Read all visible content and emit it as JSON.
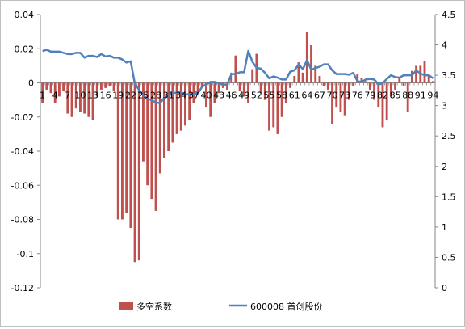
{
  "chart_data": {
    "type": "bar+line",
    "left_axis": {
      "min": -0.12,
      "max": 0.04,
      "ticks": [
        "0.04",
        "0.02",
        "0",
        "-0.02",
        "-0.04",
        "-0.06",
        "-0.08",
        "-0.1",
        "-0.12"
      ]
    },
    "right_axis": {
      "min": 0,
      "max": 4.5,
      "ticks": [
        "4.5",
        "4",
        "3.5",
        "3",
        "2.5",
        "2",
        "1.5",
        "1",
        "0.5",
        "0"
      ]
    },
    "x_tick_labels": [
      "1",
      "4",
      "7",
      "10",
      "13",
      "16",
      "19",
      "22",
      "25",
      "28",
      "31",
      "34",
      "37",
      "40",
      "43",
      "46",
      "49",
      "52",
      "55",
      "58",
      "61",
      "64",
      "67",
      "70",
      "73",
      "76",
      "79",
      "82",
      "85",
      "88",
      "91",
      "94"
    ],
    "x_tick_positions": [
      1,
      4,
      7,
      10,
      13,
      16,
      19,
      22,
      25,
      28,
      31,
      34,
      37,
      40,
      43,
      46,
      49,
      52,
      55,
      58,
      61,
      64,
      67,
      70,
      73,
      76,
      79,
      82,
      85,
      88,
      91,
      94
    ],
    "series": [
      {
        "name": "多空系数",
        "type": "bar",
        "axis": "left",
        "color": "#c0504d",
        "values": [
          -0.012,
          -0.004,
          -0.006,
          -0.012,
          -0.008,
          -0.005,
          -0.018,
          -0.02,
          -0.015,
          -0.017,
          -0.018,
          -0.02,
          -0.022,
          -0.008,
          -0.004,
          -0.003,
          -0.002,
          -0.005,
          -0.08,
          -0.08,
          -0.076,
          -0.085,
          -0.105,
          -0.104,
          -0.046,
          -0.06,
          -0.068,
          -0.075,
          -0.053,
          -0.044,
          -0.04,
          -0.035,
          -0.03,
          -0.028,
          -0.025,
          -0.022,
          -0.012,
          -0.005,
          -0.003,
          -0.014,
          -0.02,
          -0.012,
          -0.006,
          -0.003,
          -0.004,
          0.006,
          0.016,
          -0.005,
          -0.008,
          -0.012,
          0.008,
          0.017,
          -0.006,
          -0.01,
          -0.028,
          -0.026,
          -0.03,
          -0.02,
          -0.012,
          -0.003,
          0.004,
          0.012,
          0.006,
          0.03,
          0.022,
          0.01,
          0.004,
          -0.002,
          -0.004,
          -0.024,
          -0.014,
          -0.017,
          -0.019,
          -0.01,
          -0.002,
          0.005,
          0.003,
          0.001,
          -0.004,
          -0.01,
          -0.014,
          -0.026,
          -0.022,
          -0.008,
          -0.004,
          0.003,
          -0.002,
          -0.017,
          0.007,
          0.01,
          0.01,
          0.013,
          0.004,
          0.001
        ],
        "legend": "多空系数"
      },
      {
        "name": "600008 首创股份",
        "type": "line",
        "axis": "right",
        "color": "#4f81bd",
        "values": [
          3.9,
          3.92,
          3.89,
          3.89,
          3.89,
          3.87,
          3.85,
          3.85,
          3.87,
          3.87,
          3.79,
          3.82,
          3.82,
          3.8,
          3.85,
          3.81,
          3.82,
          3.79,
          3.79,
          3.76,
          3.71,
          3.73,
          3.36,
          3.26,
          3.17,
          3.11,
          3.09,
          3.05,
          3.04,
          3.13,
          3.17,
          3.21,
          3.21,
          3.22,
          3.18,
          3.19,
          3.19,
          3.2,
          3.31,
          3.35,
          3.39,
          3.39,
          3.37,
          3.34,
          3.35,
          3.52,
          3.52,
          3.55,
          3.55,
          3.9,
          3.72,
          3.62,
          3.61,
          3.54,
          3.45,
          3.48,
          3.46,
          3.43,
          3.43,
          3.56,
          3.58,
          3.68,
          3.6,
          3.75,
          3.59,
          3.62,
          3.64,
          3.68,
          3.68,
          3.58,
          3.52,
          3.52,
          3.52,
          3.51,
          3.54,
          3.4,
          3.39,
          3.43,
          3.44,
          3.43,
          3.35,
          3.37,
          3.44,
          3.5,
          3.47,
          3.46,
          3.5,
          3.5,
          3.5,
          3.58,
          3.53,
          3.5,
          3.5,
          3.45
        ],
        "legend": "600008 首创股份"
      }
    ],
    "xlabel": "",
    "ylabel": "",
    "title": ""
  }
}
